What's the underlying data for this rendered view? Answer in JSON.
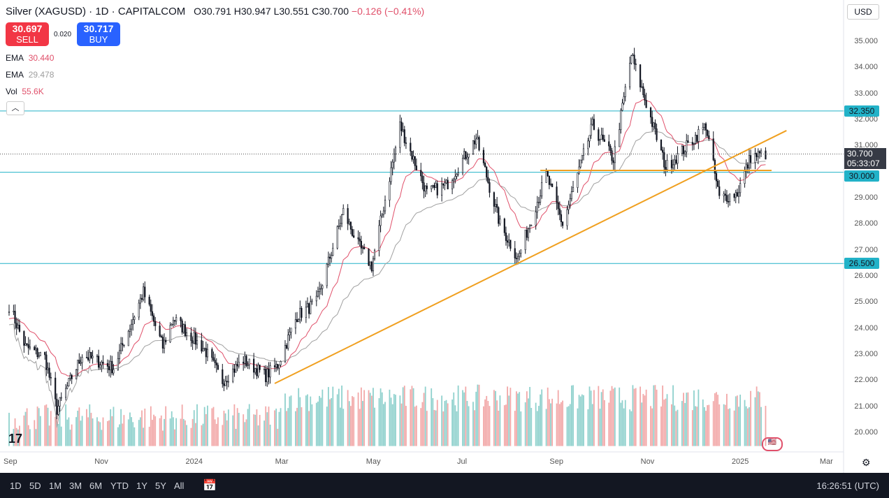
{
  "header": {
    "title": "Silver (XAGUSD) · 1D · CAPITALCOM",
    "open": "O30.791",
    "high": "H30.947",
    "low": "L30.551",
    "close": "C30.700",
    "change": "−0.126 (−0.41%)"
  },
  "trade": {
    "sell_price": "30.697",
    "sell_label": "SELL",
    "spread": "0.020",
    "buy_price": "30.717",
    "buy_label": "BUY"
  },
  "indicators": [
    {
      "name": "EMA",
      "value": "30.440",
      "color": "#e0506a"
    },
    {
      "name": "EMA",
      "value": "29.478",
      "color": "#9e9e9e"
    },
    {
      "name": "Vol",
      "value": "55.6K",
      "color": "#e0506a"
    }
  ],
  "currency": "USD",
  "price_tag": {
    "price": "30.700",
    "countdown": "05:33:07"
  },
  "levels": [
    {
      "label": "32.350",
      "value": 32.35
    },
    {
      "label": "30.000",
      "value": 30.0
    },
    {
      "label": "26.500",
      "value": 26.5
    }
  ],
  "bottom": {
    "ranges": [
      "1D",
      "5D",
      "1M",
      "3M",
      "6M",
      "YTD",
      "1Y",
      "5Y",
      "All"
    ],
    "clock": "16:26:51 (UTC)"
  },
  "chart_data": {
    "type": "candlestick",
    "y_ticks": [
      "35.000",
      "34.000",
      "33.000",
      "32.000",
      "31.000",
      "29.000",
      "28.000",
      "27.000",
      "26.000",
      "25.000",
      "24.000",
      "23.000",
      "22.000",
      "21.000",
      "20.000"
    ],
    "ylim": [
      19.5,
      35.5
    ],
    "x_ticks": [
      {
        "label": "Sep",
        "date": "2023-09-01"
      },
      {
        "label": "Nov",
        "date": "2023-11-01"
      },
      {
        "label": "2024",
        "date": "2024-01-01"
      },
      {
        "label": "Mar",
        "date": "2024-03-01"
      },
      {
        "label": "May",
        "date": "2024-05-01"
      },
      {
        "label": "Jul",
        "date": "2024-07-01"
      },
      {
        "label": "Sep",
        "date": "2024-09-01"
      },
      {
        "label": "Nov",
        "date": "2024-11-01"
      },
      {
        "label": "2025",
        "date": "2025-01-01"
      },
      {
        "label": "Mar",
        "date": "2025-03-01"
      }
    ],
    "price_path": [
      [
        "2023-09-01",
        24.9
      ],
      [
        "2023-09-12",
        23.3
      ],
      [
        "2023-09-25",
        22.9
      ],
      [
        "2023-10-03",
        20.9
      ],
      [
        "2023-10-20",
        23.0
      ],
      [
        "2023-11-10",
        22.5
      ],
      [
        "2023-11-30",
        25.4
      ],
      [
        "2023-12-13",
        23.3
      ],
      [
        "2023-12-20",
        24.4
      ],
      [
        "2024-01-10",
        23.2
      ],
      [
        "2024-01-22",
        22.0
      ],
      [
        "2024-02-05",
        22.8
      ],
      [
        "2024-02-20",
        22.2
      ],
      [
        "2024-02-28",
        22.6
      ],
      [
        "2024-03-12",
        24.5
      ],
      [
        "2024-03-25",
        25.0
      ],
      [
        "2024-04-12",
        28.5
      ],
      [
        "2024-04-22",
        27.2
      ],
      [
        "2024-05-01",
        26.4
      ],
      [
        "2024-05-20",
        31.8
      ],
      [
        "2024-06-07",
        29.2
      ],
      [
        "2024-06-20",
        29.5
      ],
      [
        "2024-07-10",
        31.3
      ],
      [
        "2024-07-26",
        28.0
      ],
      [
        "2024-08-07",
        26.7
      ],
      [
        "2024-08-26",
        29.9
      ],
      [
        "2024-09-06",
        28.0
      ],
      [
        "2024-09-26",
        31.8
      ],
      [
        "2024-10-10",
        30.5
      ],
      [
        "2024-10-22",
        34.5
      ],
      [
        "2024-11-14",
        30.2
      ],
      [
        "2024-11-25",
        30.8
      ],
      [
        "2024-12-11",
        31.8
      ],
      [
        "2024-12-20",
        29.0
      ],
      [
        "2025-01-01",
        29.2
      ],
      [
        "2025-01-10",
        30.6
      ],
      [
        "2025-01-20",
        30.7
      ]
    ],
    "trendline": [
      [
        "2024-02-26",
        21.9
      ],
      [
        "2025-02-03",
        31.6
      ]
    ],
    "support_line": [
      [
        "2024-08-22",
        30.07
      ],
      [
        "2025-01-24",
        30.07
      ]
    ],
    "colors": {
      "up": "#131722",
      "down": "#131722",
      "ema_fast": "#e0506a",
      "ema_slow": "#a0a0a0",
      "trend": "#f0a020",
      "level": "#22b2c8",
      "vol_up": "#8fd1cd",
      "vol_down": "#f2a8a8"
    }
  }
}
